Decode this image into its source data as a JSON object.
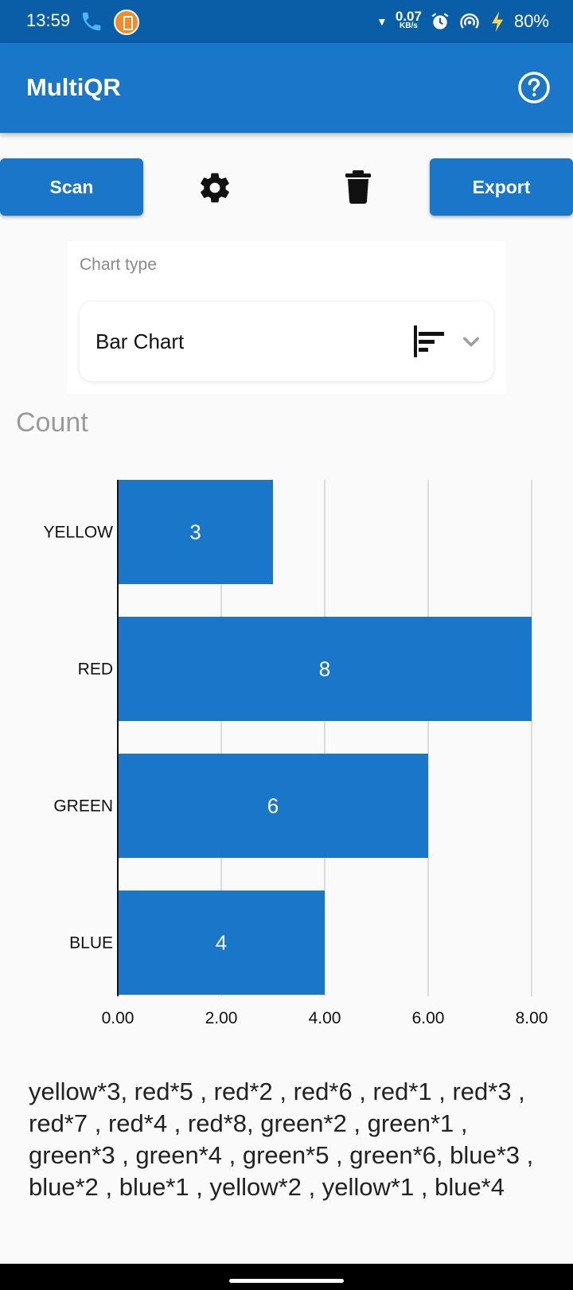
{
  "status_bar": {
    "time": "13:59",
    "net_speed_value": "0.07",
    "net_speed_unit": "KB/s",
    "battery": "80%"
  },
  "app_bar": {
    "title": "MultiQR",
    "help_icon": "help-circle-icon"
  },
  "toolbar": {
    "scan_label": "Scan",
    "export_label": "Export",
    "settings_icon": "gear-icon",
    "delete_icon": "trash-icon"
  },
  "chart_type": {
    "label": "Chart type",
    "selected": "Bar Chart",
    "icon": "bar-chart-icon"
  },
  "chart_data": {
    "type": "bar",
    "orientation": "horizontal",
    "title": "Count",
    "categories": [
      "YELLOW",
      "RED",
      "GREEN",
      "BLUE"
    ],
    "values": [
      3,
      8,
      6,
      4
    ],
    "data_labels": [
      "3",
      "8",
      "6",
      "4"
    ],
    "xlim": [
      0,
      8
    ],
    "xticks": [
      "0.00",
      "2.00",
      "4.00",
      "6.00",
      "8.00"
    ],
    "grid": true,
    "bar_color": "#1976c8"
  },
  "summary_text": "yellow*3, red*5 , red*2 , red*6 , red*1 , red*3 , red*7 , red*4 , red*8, green*2 , green*1 , green*3 , green*4 , green*5 , green*6, blue*3 , blue*2 , blue*1 , yellow*2 , yellow*1 , blue*4",
  "colors": {
    "status_bar": "#0a5ea8",
    "app_bar": "#1976c8",
    "accent": "#1976c8"
  }
}
